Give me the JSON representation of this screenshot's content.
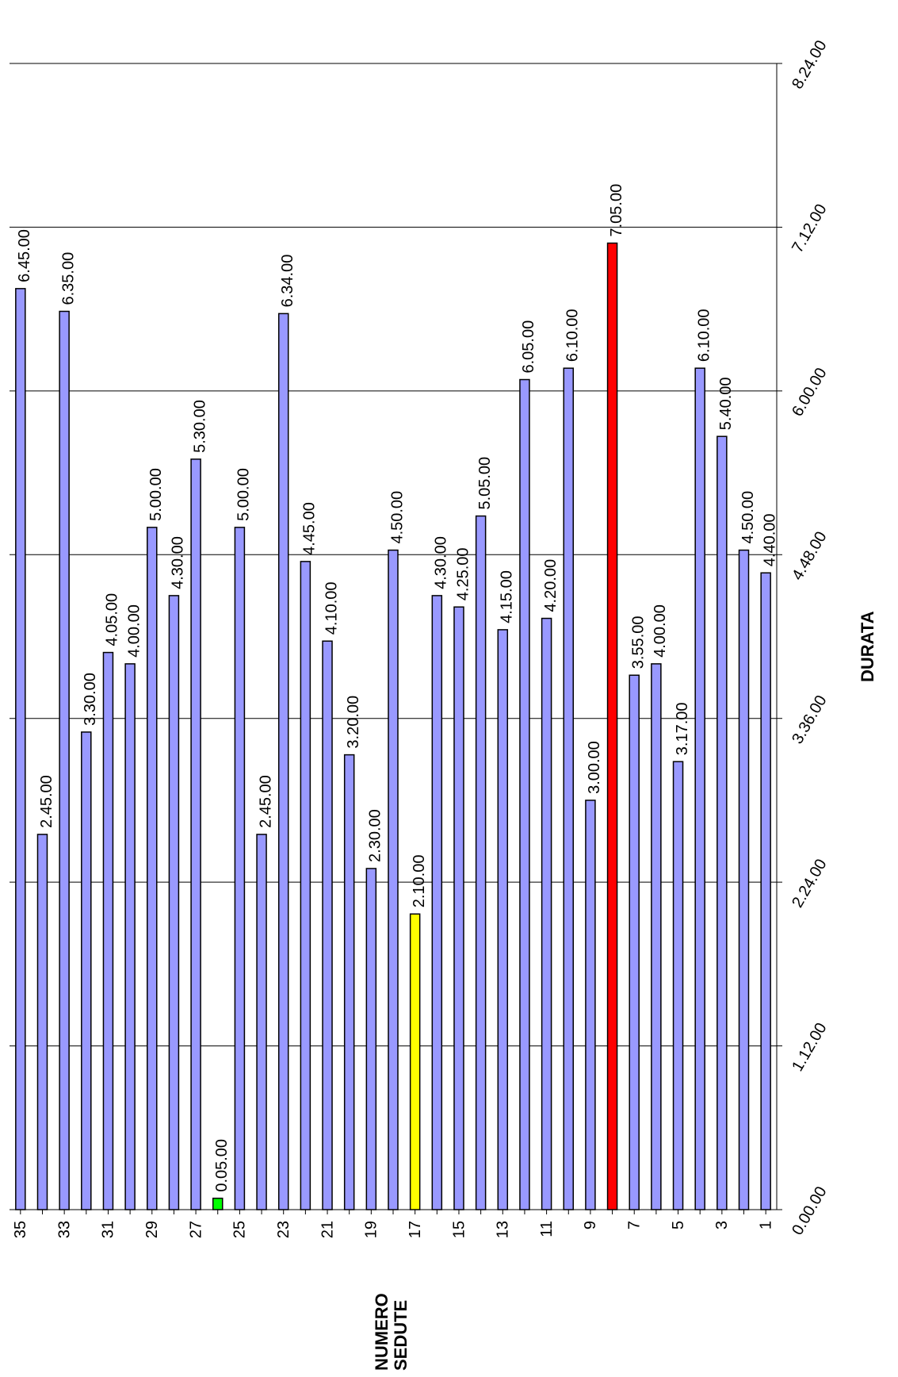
{
  "chart_data": {
    "type": "bar",
    "orientation": "horizontal-bars-in-rotated-page",
    "xlabel": "NUMERO SEDUTE",
    "ylabel": "DURATA",
    "ylim": [
      0,
      8.4
    ],
    "yticks": [
      "0.00.00",
      "1.12.00",
      "2.24.00",
      "3.36.00",
      "4.48.00",
      "6.00.00",
      "7.12.00",
      "8.24.00"
    ],
    "categories": [
      35,
      34,
      33,
      32,
      31,
      30,
      29,
      28,
      27,
      26,
      25,
      24,
      23,
      22,
      21,
      20,
      19,
      18,
      17,
      16,
      15,
      14,
      13,
      12,
      11,
      10,
      9,
      8,
      7,
      6,
      5,
      4,
      3,
      2,
      1
    ],
    "category_tick_labels": [
      "35",
      "33",
      "31",
      "29",
      "27",
      "25",
      "23",
      "21",
      "19",
      "17",
      "15",
      "13",
      "11",
      "9",
      "7",
      "5",
      "3",
      "1"
    ],
    "values": [
      6.75,
      2.75,
      6.5833,
      3.5,
      4.0833,
      4.0,
      5.0,
      4.5,
      5.5,
      0.0833,
      5.0,
      2.75,
      6.5667,
      4.75,
      4.1667,
      3.3333,
      2.5,
      4.8333,
      2.1667,
      4.5,
      4.4167,
      5.0833,
      4.25,
      6.0833,
      4.3333,
      6.1667,
      3.0,
      7.0833,
      3.9167,
      4.0,
      3.2833,
      6.1667,
      5.6667,
      4.8333,
      4.6667
    ],
    "value_labels": [
      "6.45.00",
      "2.45.00",
      "6.35.00",
      "3.30.00",
      "4.05.00",
      "4.00.00",
      "5.00.00",
      "4.30.00",
      "5.30.00",
      "0.05.00",
      "5.00.00",
      "2.45.00",
      "6.34.00",
      "4.45.00",
      "4.10.00",
      "3.20.00",
      "2.30.00",
      "4.50.00",
      "2.10.00",
      "4.30.00",
      "4.25.00",
      "5.05.00",
      "4.15.00",
      "6.05.00",
      "4.20.00",
      "6.10.00",
      "3.00.00",
      "7.05.00",
      "3.55.00",
      "4.00.00",
      "3.17.00",
      "6.10.00",
      "5.40.00",
      "4.50.00",
      "4.40.00"
    ],
    "bar_colors": {
      "default": "#9999ff",
      "highlights": {
        "26": "#00ff00",
        "17": "#ffff00",
        "8": "#ff0000"
      }
    },
    "grid": true,
    "legend": "none"
  }
}
